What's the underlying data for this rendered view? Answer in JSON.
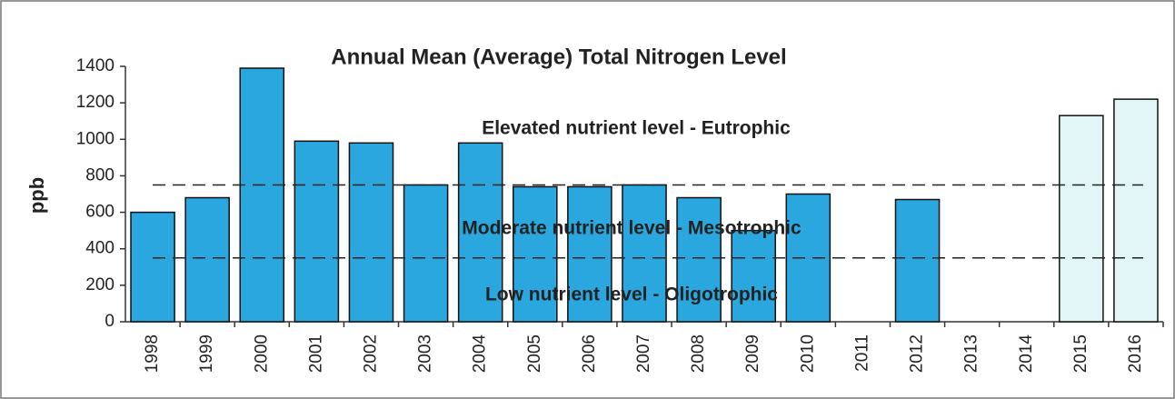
{
  "chart_data": {
    "type": "bar",
    "title": "Annual Mean (Average) Total Nitrogen Level",
    "y_label": "ppb",
    "categories": [
      "1998",
      "1999",
      "2000",
      "2001",
      "2002",
      "2003",
      "2004",
      "2005",
      "2006",
      "2007",
      "2008",
      "2009",
      "2010",
      "2011",
      "2012",
      "2013",
      "2014",
      "2015",
      "2016"
    ],
    "values": [
      600,
      680,
      1390,
      990,
      980,
      750,
      980,
      740,
      740,
      750,
      680,
      500,
      700,
      null,
      670,
      null,
      null,
      1130,
      1220
    ],
    "colors": [
      "#2aa7de",
      "#2aa7de",
      "#2aa7de",
      "#2aa7de",
      "#2aa7de",
      "#2aa7de",
      "#2aa7de",
      "#2aa7de",
      "#2aa7de",
      "#2aa7de",
      "#2aa7de",
      "#2aa7de",
      "#2aa7de",
      "#2aa7de",
      "#2aa7de",
      "#2aa7de",
      "#2aa7de",
      "#e2f6f8",
      "#e2f6f8"
    ],
    "ylim": [
      0,
      1400
    ],
    "yticks": [
      0,
      200,
      400,
      600,
      800,
      1000,
      1200,
      1400
    ],
    "reference_lines": [
      750,
      350
    ],
    "annotations": [
      "Elevated nutrient level - Eutrophic",
      "Moderate nutrient level - Mesotrophic",
      "Low nutrient level - Oligotrophic"
    ]
  }
}
